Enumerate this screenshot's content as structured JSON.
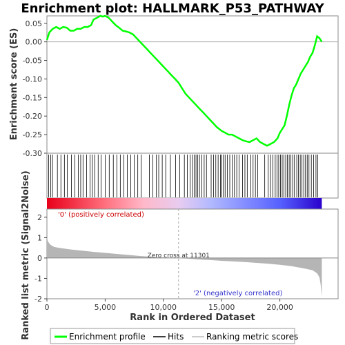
{
  "chart_data": {
    "type": "line",
    "title": "Enrichment plot: HALLMARK_P53_PATHWAY",
    "top_panel": {
      "ylabel": "Enrichment score (ES)",
      "ylim": [
        -0.3,
        0.07
      ],
      "yticks": [
        "0.05",
        "0.00",
        "-0.05",
        "-0.10",
        "-0.15",
        "-0.20",
        "-0.25",
        "-0.30"
      ],
      "series": [
        {
          "name": "Enrichment profile",
          "color": "#00ff00",
          "x": [
            0,
            200,
            500,
            800,
            1100,
            1400,
            1700,
            2000,
            2300,
            2600,
            2900,
            3200,
            3500,
            3800,
            4000,
            4300,
            4600,
            4800,
            5000,
            5300,
            5600,
            5900,
            6200,
            6500,
            6800,
            7100,
            7400,
            7700,
            8000,
            8300,
            8600,
            8900,
            9200,
            9500,
            9800,
            10100,
            10400,
            10700,
            11000,
            11300,
            11600,
            11900,
            12200,
            12500,
            12800,
            13100,
            13400,
            13700,
            14000,
            14300,
            14600,
            14800,
            15000,
            15300,
            15600,
            15900,
            16200,
            16500,
            16800,
            17100,
            17400,
            17700,
            18000,
            18300,
            18600,
            18900,
            19200,
            19500,
            19800,
            20000,
            20200,
            20400,
            20600,
            20800,
            21000,
            21200,
            21400,
            21600,
            21800,
            22000,
            22200,
            22400,
            22600,
            22800,
            23000,
            23200,
            23400,
            23600
          ],
          "y": [
            0.005,
            0.025,
            0.035,
            0.04,
            0.035,
            0.04,
            0.038,
            0.03,
            0.03,
            0.035,
            0.035,
            0.04,
            0.04,
            0.045,
            0.06,
            0.065,
            0.07,
            0.068,
            0.07,
            0.065,
            0.055,
            0.045,
            0.038,
            0.03,
            0.028,
            0.025,
            0.02,
            0.01,
            0.0,
            -0.01,
            -0.02,
            -0.03,
            -0.04,
            -0.05,
            -0.06,
            -0.07,
            -0.08,
            -0.09,
            -0.1,
            -0.11,
            -0.125,
            -0.14,
            -0.15,
            -0.16,
            -0.17,
            -0.18,
            -0.19,
            -0.2,
            -0.21,
            -0.22,
            -0.23,
            -0.235,
            -0.24,
            -0.245,
            -0.25,
            -0.25,
            -0.255,
            -0.26,
            -0.265,
            -0.268,
            -0.27,
            -0.265,
            -0.26,
            -0.27,
            -0.275,
            -0.28,
            -0.275,
            -0.27,
            -0.26,
            -0.245,
            -0.235,
            -0.225,
            -0.2,
            -0.17,
            -0.145,
            -0.125,
            -0.115,
            -0.1,
            -0.085,
            -0.075,
            -0.065,
            -0.055,
            -0.04,
            -0.03,
            -0.01,
            0.015,
            0.01,
            0.0
          ]
        }
      ]
    },
    "bottom_panel": {
      "ylabel": "Ranked list metric (Signal2Noise)",
      "xlabel": "Rank in Ordered Dataset",
      "ylim": [
        -2,
        2.4
      ],
      "yticks": [
        "2",
        "1",
        "0",
        "-1",
        "-2"
      ],
      "xticks": [
        "0",
        "5,000",
        "10,000",
        "15,000",
        "20,000"
      ],
      "metric_x": [
        0,
        100,
        300,
        600,
        1000,
        2000,
        3000,
        4000,
        5000,
        6000,
        7000,
        8000,
        9000,
        10000,
        11301,
        12000,
        13000,
        14000,
        15000,
        16000,
        17000,
        18000,
        19000,
        20000,
        21000,
        22000,
        22800,
        23200,
        23400,
        23500,
        23600
      ],
      "metric_y": [
        1.0,
        0.8,
        0.65,
        0.55,
        0.5,
        0.42,
        0.36,
        0.3,
        0.25,
        0.2,
        0.15,
        0.1,
        0.06,
        0.03,
        0.0,
        -0.03,
        -0.07,
        -0.1,
        -0.14,
        -0.17,
        -0.2,
        -0.24,
        -0.28,
        -0.33,
        -0.4,
        -0.5,
        -0.6,
        -0.75,
        -0.95,
        -1.3,
        -1.9
      ],
      "annotations": {
        "zero_cross": "Zero cross at 11301",
        "positive": "'0' (positively correlated)",
        "negative": "'2' (negatively correlated)"
      },
      "zero_cross_rank": 11301
    },
    "xlim": [
      0,
      25000
    ],
    "dataset_size": 23600,
    "hits": [
      150,
      320,
      480,
      900,
      1200,
      1500,
      1750,
      2100,
      2400,
      2700,
      2900,
      3100,
      3400,
      3700,
      3900,
      4100,
      4400,
      4650,
      5000,
      5350,
      5700,
      6000,
      6300,
      6600,
      6900,
      7200,
      7500,
      7800,
      8100,
      8800,
      9100,
      9400,
      9600,
      9900,
      10200,
      10600,
      11050,
      11400,
      11800,
      12050,
      12300,
      12500,
      12650,
      12800,
      12950,
      13100,
      13300,
      13500,
      13700,
      14100,
      14300,
      14500,
      14700,
      14900,
      15000,
      15150,
      15300,
      15500,
      15700,
      15900,
      16100,
      16300,
      16500,
      16800,
      17000,
      17200,
      17500,
      17700,
      17900,
      18100,
      18700,
      19000,
      19200,
      19400,
      19600,
      19750,
      19900,
      20050,
      20200,
      20350,
      20500,
      20650,
      20800,
      20950,
      21100,
      21250,
      21450,
      21600,
      21750,
      21900,
      22050,
      22200,
      22350,
      22500,
      22700,
      22900,
      23100,
      23250
    ],
    "legend": [
      "Enrichment profile",
      "Hits",
      "Ranking metric scores"
    ],
    "legend_colors": [
      "#00ff00",
      "#000000",
      "#cccccc"
    ]
  }
}
